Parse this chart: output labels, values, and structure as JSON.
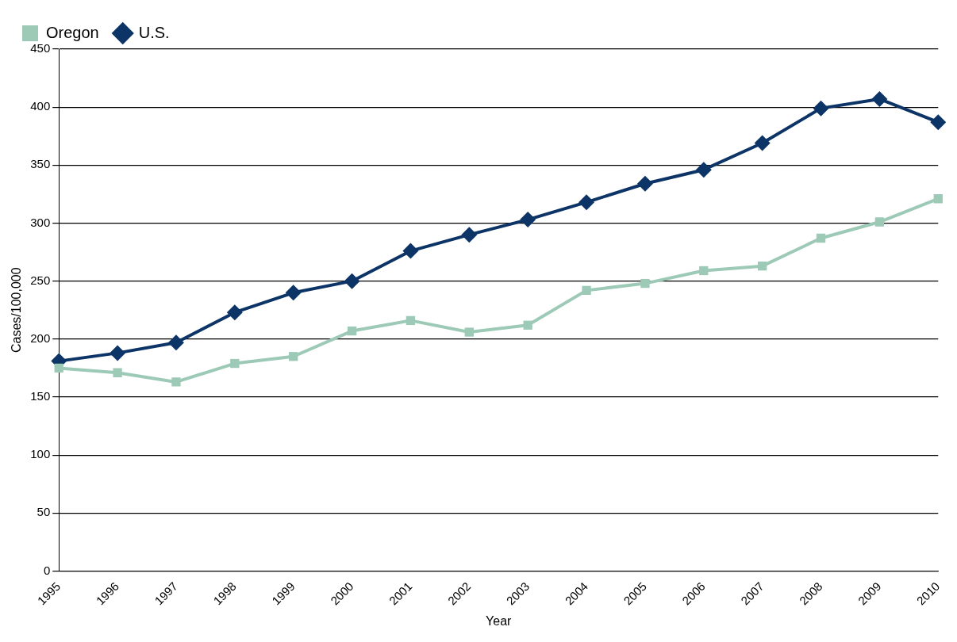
{
  "chart_data": {
    "type": "line",
    "xlabel": "Year",
    "ylabel": "Cases/100,000",
    "categories": [
      "1995",
      "1996",
      "1997",
      "1998",
      "1999",
      "2000",
      "2001",
      "2002",
      "2003",
      "2004",
      "2005",
      "2006",
      "2007",
      "2008",
      "2009",
      "2010"
    ],
    "series": [
      {
        "name": "Oregon",
        "color": "#9dc9b7",
        "marker": "square",
        "values": [
          175,
          171,
          163,
          179,
          185,
          207,
          216,
          206,
          212,
          242,
          248,
          259,
          263,
          287,
          301,
          321
        ]
      },
      {
        "name": "U.S.",
        "color": "#0d3466",
        "marker": "diamond",
        "values": [
          181,
          188,
          197,
          223,
          240,
          250,
          276,
          290,
          303,
          318,
          334,
          346,
          369,
          399,
          407,
          387
        ]
      }
    ],
    "ylim": [
      0,
      450
    ],
    "yticks": [
      0,
      50,
      100,
      150,
      200,
      250,
      300,
      350,
      400,
      450
    ],
    "grid": "y",
    "legend": "top left",
    "line_style": "solid"
  }
}
